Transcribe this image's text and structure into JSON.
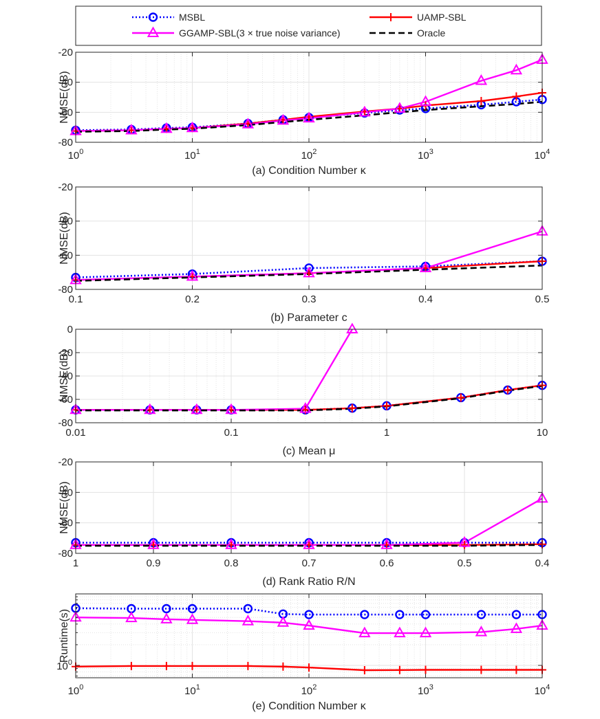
{
  "legend": {
    "entries": [
      {
        "label": "MSBL",
        "color": "#0000ff",
        "style": "dotted",
        "marker": "circle"
      },
      {
        "label": "UAMP-SBL",
        "color": "#ff0000",
        "style": "solid",
        "marker": "plus"
      },
      {
        "label": "GGAMP-SBL(3 × true noise variance)",
        "color": "#ff00ff",
        "style": "solid",
        "marker": "triangle"
      },
      {
        "label": "Oracle",
        "color": "#000000",
        "style": "dashed",
        "marker": "none"
      }
    ]
  },
  "chart_data": [
    {
      "id": "a",
      "type": "line",
      "title": "",
      "xlabel": "(a) Condition Number κ",
      "ylabel": "NMSE(dB)",
      "xscale": "log",
      "xlim": [
        1,
        10000
      ],
      "ylim": [
        -80,
        -20
      ],
      "xticks": [
        1,
        10,
        100,
        1000,
        10000
      ],
      "xtick_exponents": [
        "0",
        "1",
        "2",
        "3",
        "4"
      ],
      "yticks": [
        -80,
        -60,
        -40,
        -20
      ],
      "ytick_labels": [
        "-80",
        "-60",
        "-40",
        "-20"
      ],
      "grid": true,
      "x": [
        1,
        3,
        6,
        10,
        30,
        60,
        100,
        300,
        600,
        1000,
        3000,
        6000,
        10000
      ],
      "series": [
        {
          "name": "MSBL",
          "values": [
            -72,
            -71.5,
            -70.5,
            -70,
            -67.5,
            -65,
            -63.5,
            -60.5,
            -58.5,
            -57.5,
            -55,
            -53,
            -51.5
          ]
        },
        {
          "name": "UAMP-SBL",
          "values": [
            -72.5,
            -72,
            -71,
            -70.5,
            -67.5,
            -65,
            -63,
            -59.5,
            -57.5,
            -55.5,
            -52.5,
            -49.5,
            -47
          ]
        },
        {
          "name": "GGAMP-SBL(3 × true noise variance)",
          "values": [
            -72.5,
            -72,
            -71,
            -70.5,
            -68,
            -65.5,
            -64,
            -60,
            -57.5,
            -53,
            -39,
            -32,
            -25
          ]
        },
        {
          "name": "Oracle",
          "values": [
            -73,
            -72.5,
            -71.5,
            -71,
            -68.5,
            -66.5,
            -65,
            -62,
            -60,
            -58.5,
            -56,
            -54.5,
            -53
          ]
        }
      ]
    },
    {
      "id": "b",
      "type": "line",
      "title": "",
      "xlabel": "(b) Parameter c",
      "ylabel": "NMSE(dB)",
      "xscale": "linear",
      "xlim": [
        0.1,
        0.5
      ],
      "ylim": [
        -80,
        -20
      ],
      "xticks": [
        0.1,
        0.2,
        0.3,
        0.4,
        0.5
      ],
      "xtick_labels": [
        "0.1",
        "0.2",
        "0.3",
        "0.4",
        "0.5"
      ],
      "yticks": [
        -80,
        -60,
        -40,
        -20
      ],
      "ytick_labels": [
        "-80",
        "-60",
        "-40",
        "-20"
      ],
      "grid": true,
      "x": [
        0.1,
        0.2,
        0.3,
        0.4,
        0.5
      ],
      "series": [
        {
          "name": "MSBL",
          "values": [
            -73,
            -71,
            -67.5,
            -66.5,
            -63.5
          ]
        },
        {
          "name": "UAMP-SBL",
          "values": [
            -74.5,
            -72.5,
            -70.5,
            -67.5,
            -63.5
          ]
        },
        {
          "name": "GGAMP-SBL(3 × true noise variance)",
          "values": [
            -74.5,
            -72.5,
            -70.5,
            -67.5,
            -46
          ]
        },
        {
          "name": "Oracle",
          "values": [
            -75,
            -73,
            -71,
            -68.5,
            -66
          ]
        }
      ]
    },
    {
      "id": "c",
      "type": "line",
      "title": "",
      "xlabel": "(c) Mean μ",
      "ylabel": "NMSE(dB)",
      "xscale": "log",
      "xlim": [
        0.01,
        10
      ],
      "ylim": [
        -80,
        0
      ],
      "xticks": [
        0.01,
        0.1,
        1,
        10
      ],
      "xtick_labels": [
        "0.01",
        "0.1",
        "1",
        "10"
      ],
      "yticks": [
        -80,
        -60,
        -40,
        -20,
        0
      ],
      "ytick_labels": [
        "-80",
        "-60",
        "-40",
        "-20",
        "0"
      ],
      "grid": true,
      "x": [
        0.01,
        0.03,
        0.06,
        0.1,
        0.3,
        0.6,
        1,
        3,
        6,
        10
      ],
      "series": [
        {
          "name": "MSBL",
          "values": [
            -69,
            -69,
            -69,
            -69,
            -69,
            -67.5,
            -65.5,
            -58.5,
            -52,
            -48
          ]
        },
        {
          "name": "UAMP-SBL",
          "values": [
            -69,
            -69,
            -69,
            -69,
            -69,
            -67.5,
            -65.5,
            -58.5,
            -52,
            -48
          ]
        },
        {
          "name": "GGAMP-SBL(3 × true noise variance)",
          "values": [
            -69,
            -69,
            -69,
            -69,
            -68,
            0,
            null,
            null,
            null,
            null
          ]
        },
        {
          "name": "Oracle",
          "values": [
            -69.5,
            -69.5,
            -69.5,
            -69.5,
            -69.5,
            -68,
            -66,
            -59,
            -52.5,
            -48.5
          ]
        }
      ]
    },
    {
      "id": "d",
      "type": "line",
      "title": "",
      "xlabel": "(d) Rank Ratio R/N",
      "ylabel": "NMSE(dB)",
      "xscale": "linear-reversed",
      "xlim": [
        1,
        0.4
      ],
      "ylim": [
        -80,
        -20
      ],
      "xticks": [
        1,
        0.9,
        0.8,
        0.7,
        0.6,
        0.5,
        0.4
      ],
      "xtick_labels": [
        "1",
        "0.9",
        "0.8",
        "0.7",
        "0.6",
        "0.5",
        "0.4"
      ],
      "yticks": [
        -80,
        -60,
        -40,
        -20
      ],
      "ytick_labels": [
        "-80",
        "-60",
        "-40",
        "-20"
      ],
      "grid": true,
      "x": [
        1,
        0.9,
        0.8,
        0.7,
        0.6,
        0.5,
        0.4
      ],
      "series": [
        {
          "name": "MSBL",
          "values": [
            -73,
            -73,
            -73,
            -73,
            -73,
            -73,
            -73
          ]
        },
        {
          "name": "UAMP-SBL",
          "values": [
            -74.5,
            -74.5,
            -74.5,
            -74.5,
            -74.5,
            -74.5,
            -74
          ]
        },
        {
          "name": "GGAMP-SBL(3 × true noise variance)",
          "values": [
            -74.5,
            -74.5,
            -74.5,
            -74.5,
            -74.5,
            -73,
            -44
          ]
        },
        {
          "name": "Oracle",
          "values": [
            -75,
            -75,
            -75,
            -75,
            -75,
            -75,
            -74.5
          ]
        }
      ]
    },
    {
      "id": "e",
      "type": "line",
      "title": "",
      "xlabel": "(e) Condition Number κ",
      "ylabel": "Runtime(s)",
      "xscale": "log",
      "yscale": "log",
      "xlim": [
        1,
        10000
      ],
      "ylim": [
        0.66,
        11
      ],
      "xticks": [
        1,
        10,
        100,
        1000,
        10000
      ],
      "xtick_exponents": [
        "0",
        "1",
        "2",
        "3",
        "4"
      ],
      "yticks": [
        1
      ],
      "ytick_exponents": [
        "0"
      ],
      "grid": true,
      "x": [
        1,
        3,
        6,
        10,
        30,
        60,
        100,
        300,
        600,
        1000,
        3000,
        6000,
        10000
      ],
      "series": [
        {
          "name": "MSBL",
          "values": [
            6.8,
            6.7,
            6.7,
            6.7,
            6.7,
            5.6,
            5.5,
            5.5,
            5.5,
            5.5,
            5.5,
            5.5,
            5.5
          ]
        },
        {
          "name": "UAMP-SBL",
          "values": [
            0.96,
            0.98,
            0.98,
            0.98,
            0.98,
            0.96,
            0.93,
            0.85,
            0.855,
            0.86,
            0.86,
            0.86,
            0.86
          ]
        },
        {
          "name": "GGAMP-SBL(3 × true noise variance)",
          "values": [
            5.0,
            4.9,
            4.7,
            4.6,
            4.4,
            4.2,
            3.8,
            2.95,
            2.95,
            2.95,
            3.05,
            3.4,
            3.8
          ]
        }
      ]
    }
  ]
}
